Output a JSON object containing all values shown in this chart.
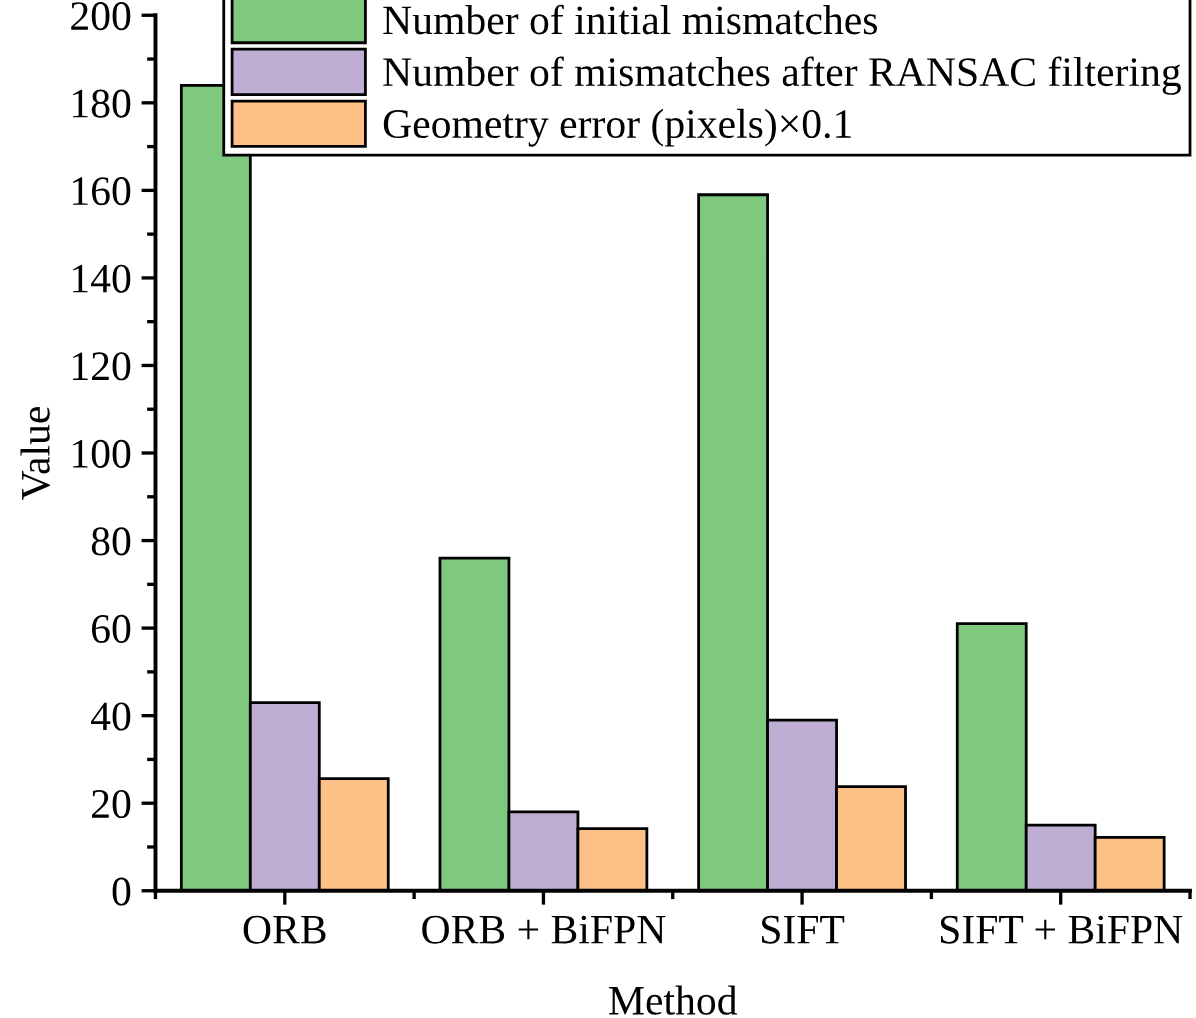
{
  "chart_data": {
    "type": "bar",
    "xlabel": "Method",
    "ylabel": "Value",
    "categories": [
      "ORB",
      "ORB + BiFPN",
      "SIFT",
      "SIFT + BiFPN"
    ],
    "series": [
      {
        "name": "Number of initial mismatches",
        "color": "#7fc97f",
        "values": [
          184,
          76,
          159,
          61
        ]
      },
      {
        "name": "Number of mismatches after RANSAC filtering",
        "color": "#beaed4",
        "values": [
          43,
          18,
          39,
          15
        ]
      },
      {
        "name": "Geometry error (pixels)×0.1",
        "color": "#fdc086",
        "values": [
          25.6,
          14.2,
          23.8,
          12.2
        ]
      }
    ],
    "ylim": [
      0,
      200
    ],
    "yticks": [
      0,
      20,
      40,
      60,
      80,
      100,
      120,
      140,
      160,
      180,
      200
    ],
    "grid": false,
    "legend": "top right"
  }
}
